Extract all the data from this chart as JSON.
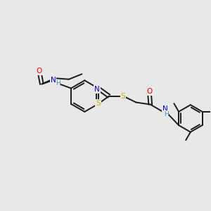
{
  "background_color": "#e8e8e8",
  "figsize": [
    3.0,
    3.0
  ],
  "dpi": 100,
  "atom_colors": {
    "C": "#000000",
    "N": "#0000cc",
    "O": "#ff0000",
    "S": "#ccaa00",
    "H": "#4488aa"
  },
  "bond_color": "#1a1a1a",
  "bond_width": 1.4,
  "font_size": 7.0,
  "xlim": [
    0,
    10
  ],
  "ylim": [
    0,
    10
  ]
}
